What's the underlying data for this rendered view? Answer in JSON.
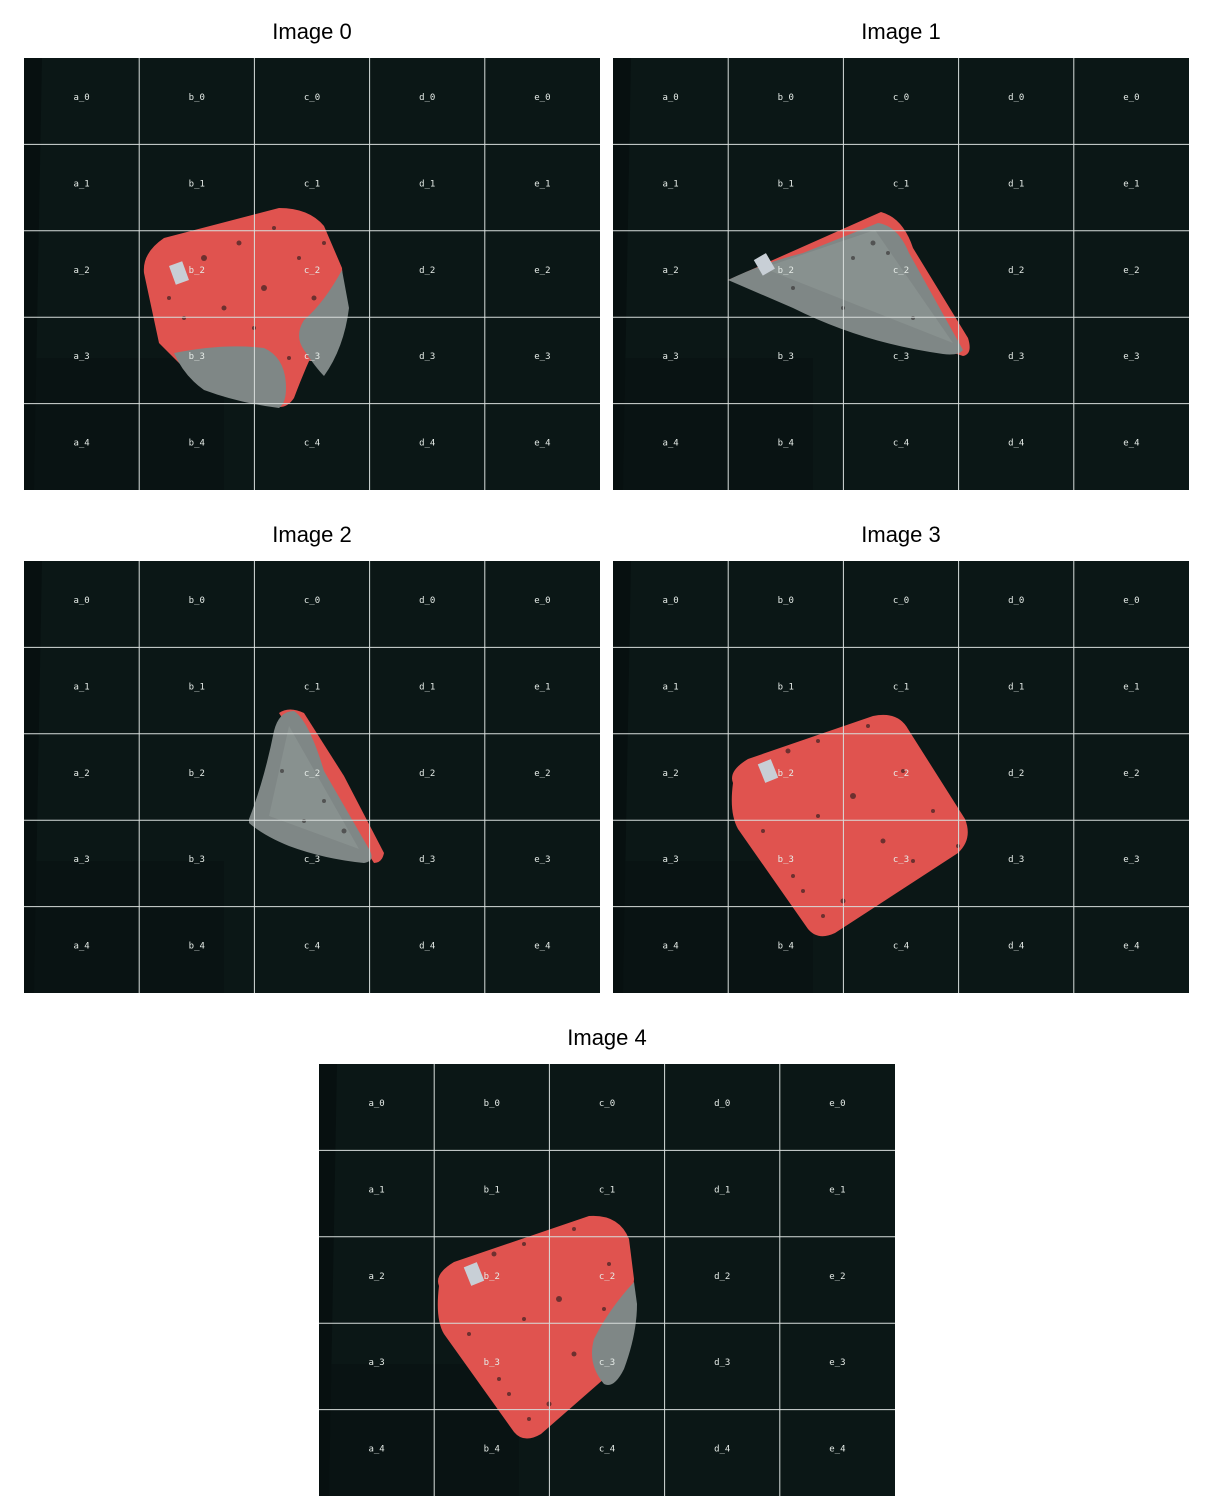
{
  "figure": {
    "panels": [
      {
        "title": "Image 0",
        "state": "cloth partially folded, grey underside visible at lower right and bottom"
      },
      {
        "title": "Image 1",
        "state": "cloth folded into a triangle, grey side up"
      },
      {
        "title": "Image 2",
        "state": "cloth folded smaller, grey side up"
      },
      {
        "title": "Image 3",
        "state": "cloth fully unfolded, red side up"
      },
      {
        "title": "Image 4",
        "state": "cloth mostly unfolded, grey corner folded at lower right"
      }
    ],
    "grid": {
      "columns": [
        "a",
        "b",
        "c",
        "d",
        "e"
      ],
      "rows": [
        "0",
        "1",
        "2",
        "3",
        "4"
      ],
      "labels": [
        [
          "a_0",
          "b_0",
          "c_0",
          "d_0",
          "e_0"
        ],
        [
          "a_1",
          "b_1",
          "c_1",
          "d_1",
          "e_1"
        ],
        [
          "a_2",
          "b_2",
          "c_2",
          "d_2",
          "e_2"
        ],
        [
          "a_3",
          "b_3",
          "c_3",
          "d_3",
          "e_3"
        ],
        [
          "a_4",
          "b_4",
          "c_4",
          "d_4",
          "e_4"
        ]
      ]
    },
    "colors": {
      "background": "#0b1716",
      "background_left_shadow": "#071010",
      "grid_lines": "#d8dedc",
      "cloth_red": "#e0534f",
      "cloth_red_dark": "#b23a3a",
      "cloth_grey": "#7f8786",
      "cloth_grey_light": "#9aa2a0",
      "speckle": "#5a2a2a",
      "tag": "#c8cfd6"
    }
  }
}
